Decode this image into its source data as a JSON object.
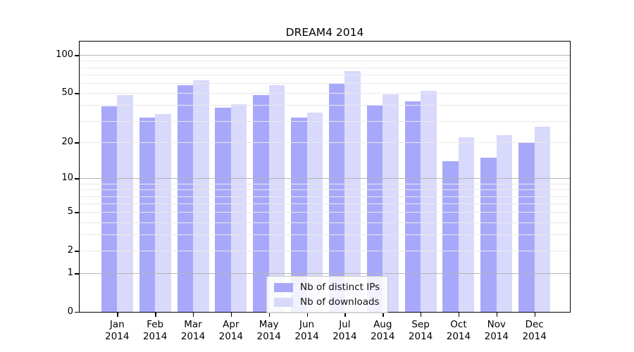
{
  "chart_data": {
    "type": "bar",
    "title": "DREAM4 2014",
    "y_scale": "log1p",
    "year": "2014",
    "categories": [
      "Jan",
      "Feb",
      "Mar",
      "Apr",
      "May",
      "Jun",
      "Jul",
      "Aug",
      "Sep",
      "Oct",
      "Nov",
      "Dec"
    ],
    "series": [
      {
        "name": "Nb of distinct IPs",
        "color": "#a8a8fa",
        "values": [
          39,
          32,
          58,
          38,
          48,
          32,
          60,
          40,
          43,
          14,
          15,
          20
        ]
      },
      {
        "name": "Nb of downloads",
        "color": "#d9d9fc",
        "values": [
          48,
          34,
          63,
          41,
          58,
          35,
          75,
          49,
          52,
          22,
          23,
          27
        ]
      }
    ],
    "y_ticks": [
      100,
      50,
      20,
      10,
      5,
      2,
      1,
      0
    ],
    "ylim": [
      0,
      126
    ],
    "xlabel": "",
    "ylabel": "",
    "grid": {
      "major_lines": [
        1,
        10,
        100
      ],
      "minor_lines": [
        2,
        3,
        4,
        5,
        6,
        7,
        8,
        9,
        20,
        30,
        40,
        50,
        60,
        70,
        80,
        90
      ],
      "major_color": "#b5b5b5",
      "minor_color": "#e9e9e9"
    },
    "legend": {
      "position": "bottom-center",
      "frame_color": "#cccccc"
    },
    "colors": {
      "axis": "#000000",
      "background": "#ffffff"
    }
  }
}
